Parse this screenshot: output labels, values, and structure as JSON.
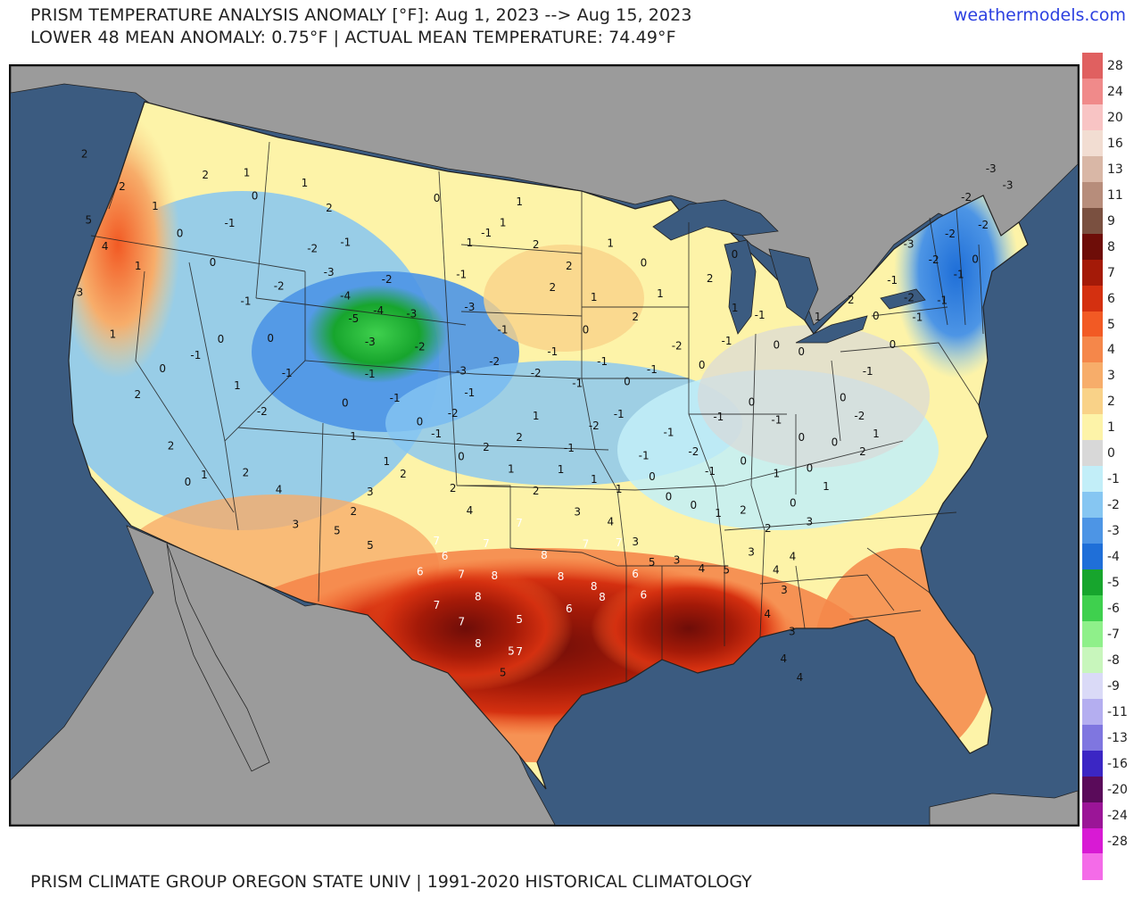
{
  "header": {
    "title_line_1": "PRISM TEMPERATURE ANALYSIS ANOMALY [°F]: Aug 1, 2023 --> Aug 15, 2023",
    "title_line_2": "LOWER 48 MEAN ANOMALY: 0.75°F | ACTUAL MEAN TEMPERATURE: 74.49°F",
    "site": "weathermodels.com"
  },
  "footer": {
    "source": "PRISM CLIMATE GROUP OREGON STATE UNIV | 1991-2020 HISTORICAL CLIMATOLOGY"
  },
  "colors": {
    "ocean": "#3b5b80",
    "land_outside": "#9b9b9b",
    "neutral": "#d9d9d9",
    "link": "#2b3fe0"
  },
  "color_scale": [
    {
      "label": "28",
      "color": "#e06060"
    },
    {
      "label": "24",
      "color": "#f08a8a"
    },
    {
      "label": "20",
      "color": "#f8c4c4"
    },
    {
      "label": "16",
      "color": "#f2ddd2"
    },
    {
      "label": "13",
      "color": "#d9b7a6"
    },
    {
      "label": "11",
      "color": "#b78d7b"
    },
    {
      "label": "9",
      "color": "#7a5040"
    },
    {
      "label": "8",
      "color": "#6e0d08"
    },
    {
      "label": "7",
      "color": "#a41a08"
    },
    {
      "label": "6",
      "color": "#d43010"
    },
    {
      "label": "5",
      "color": "#f25a24"
    },
    {
      "label": "4",
      "color": "#f5874a"
    },
    {
      "label": "3",
      "color": "#f7ad6a"
    },
    {
      "label": "2",
      "color": "#f9d288"
    },
    {
      "label": "1",
      "color": "#fdf3a8"
    },
    {
      "label": "0",
      "color": "#d8d8d8"
    },
    {
      "label": "-1",
      "color": "#c2eef8"
    },
    {
      "label": "-2",
      "color": "#86c6f2"
    },
    {
      "label": "-3",
      "color": "#4d95e5"
    },
    {
      "label": "-4",
      "color": "#1f6fd8"
    },
    {
      "label": "-5",
      "color": "#17a52d"
    },
    {
      "label": "-6",
      "color": "#3fd04e"
    },
    {
      "label": "-7",
      "color": "#8ff08a"
    },
    {
      "label": "-8",
      "color": "#c8f6bc"
    },
    {
      "label": "-9",
      "color": "#dadaf7"
    },
    {
      "label": "-11",
      "color": "#b4aef0"
    },
    {
      "label": "-13",
      "color": "#7f76e0"
    },
    {
      "label": "-16",
      "color": "#3b26c4"
    },
    {
      "label": "-20",
      "color": "#5a0b5a"
    },
    {
      "label": "-24",
      "color": "#9b1597"
    },
    {
      "label": "-28",
      "color": "#d81ad4"
    },
    {
      "label": "",
      "color": "#f46be8"
    }
  ],
  "map_labels": [
    {
      "t": "2",
      "lon": -123.8,
      "lat": 47.5
    },
    {
      "t": "5",
      "lon": -123.5,
      "lat": 44.5
    },
    {
      "t": "4",
      "lon": -122.5,
      "lat": 43.5
    },
    {
      "t": "3",
      "lon": -124.0,
      "lat": 41.0
    },
    {
      "t": "2",
      "lon": -121.5,
      "lat": 46.5
    },
    {
      "t": "1",
      "lon": -119.5,
      "lat": 46.0
    },
    {
      "t": "0",
      "lon": -118.0,
      "lat": 45.0
    },
    {
      "t": "1",
      "lon": -120.5,
      "lat": 43.0
    },
    {
      "t": "0",
      "lon": -116.0,
      "lat": 44.0
    },
    {
      "t": "1",
      "lon": -122.0,
      "lat": 39.5
    },
    {
      "t": "2",
      "lon": -120.5,
      "lat": 37.0
    },
    {
      "t": "0",
      "lon": -119.0,
      "lat": 38.5
    },
    {
      "t": "-1",
      "lon": -117.0,
      "lat": 39.5
    },
    {
      "t": "0",
      "lon": -115.5,
      "lat": 40.5
    },
    {
      "t": "1",
      "lon": -114.5,
      "lat": 38.5
    },
    {
      "t": "2",
      "lon": -118.5,
      "lat": 35.0
    },
    {
      "t": "1",
      "lon": -116.5,
      "lat": 34.0
    },
    {
      "t": "0",
      "lon": -117.5,
      "lat": 33.5
    },
    {
      "t": "2",
      "lon": -114.0,
      "lat": 34.5
    },
    {
      "t": "4",
      "lon": -112.0,
      "lat": 34.0
    },
    {
      "t": "3",
      "lon": -111.0,
      "lat": 32.5
    },
    {
      "t": "-2",
      "lon": -113.0,
      "lat": 37.5
    },
    {
      "t": "-1",
      "lon": -111.5,
      "lat": 39.5
    },
    {
      "t": "0",
      "lon": -112.5,
      "lat": 41.0
    },
    {
      "t": "-1",
      "lon": -114.0,
      "lat": 42.5
    },
    {
      "t": "-2",
      "lon": -112.0,
      "lat": 43.5
    },
    {
      "t": "-1",
      "lon": -115.0,
      "lat": 46.0
    },
    {
      "t": "0",
      "lon": -113.5,
      "lat": 47.5
    },
    {
      "t": "1",
      "lon": -114.0,
      "lat": 48.5
    },
    {
      "t": "2",
      "lon": -116.5,
      "lat": 48.0
    },
    {
      "t": "1",
      "lon": -110.5,
      "lat": 48.5
    },
    {
      "t": "2",
      "lon": -109.0,
      "lat": 47.5
    },
    {
      "t": "-1",
      "lon": -108.0,
      "lat": 46.0
    },
    {
      "t": "-2",
      "lon": -110.0,
      "lat": 45.5
    },
    {
      "t": "-3",
      "lon": -109.0,
      "lat": 44.5
    },
    {
      "t": "-4",
      "lon": -108.0,
      "lat": 43.5
    },
    {
      "t": "-5",
      "lon": -107.5,
      "lat": 42.5
    },
    {
      "t": "-3",
      "lon": -106.5,
      "lat": 41.5
    },
    {
      "t": "-4",
      "lon": -106.0,
      "lat": 43.0
    },
    {
      "t": "-2",
      "lon": -105.5,
      "lat": 44.5
    },
    {
      "t": "-3",
      "lon": -104.0,
      "lat": 43.0
    },
    {
      "t": "-2",
      "lon": -103.5,
      "lat": 41.5
    },
    {
      "t": "-1",
      "lon": -106.5,
      "lat": 40.0
    },
    {
      "t": "-1",
      "lon": -105.0,
      "lat": 39.0
    },
    {
      "t": "0",
      "lon": -108.0,
      "lat": 38.5
    },
    {
      "t": "1",
      "lon": -107.5,
      "lat": 37.0
    },
    {
      "t": "1",
      "lon": -105.5,
      "lat": 36.0
    },
    {
      "t": "2",
      "lon": -104.5,
      "lat": 35.5
    },
    {
      "t": "3",
      "lon": -106.5,
      "lat": 34.5
    },
    {
      "t": "2",
      "lon": -107.5,
      "lat": 33.5
    },
    {
      "t": "5",
      "lon": -108.5,
      "lat": 32.5
    },
    {
      "t": "5",
      "lon": -106.5,
      "lat": 32.0
    },
    {
      "t": "0",
      "lon": -103.5,
      "lat": 38.0
    },
    {
      "t": "-1",
      "lon": -102.5,
      "lat": 37.5
    },
    {
      "t": "-2",
      "lon": -101.5,
      "lat": 38.5
    },
    {
      "t": "-1",
      "lon": -100.5,
      "lat": 39.5
    },
    {
      "t": "-3",
      "lon": -101.0,
      "lat": 40.5
    },
    {
      "t": "-2",
      "lon": -99.0,
      "lat": 41.0
    },
    {
      "t": "-1",
      "lon": -98.5,
      "lat": 42.5
    },
    {
      "t": "-3",
      "lon": -100.5,
      "lat": 43.5
    },
    {
      "t": "-1",
      "lon": -101.0,
      "lat": 45.0
    },
    {
      "t": "1",
      "lon": -100.5,
      "lat": 46.5
    },
    {
      "t": "1",
      "lon": -98.5,
      "lat": 47.5
    },
    {
      "t": "0",
      "lon": -102.5,
      "lat": 48.5
    },
    {
      "t": "1",
      "lon": -97.5,
      "lat": 48.5
    },
    {
      "t": "-1",
      "lon": -99.5,
      "lat": 47.0
    },
    {
      "t": "2",
      "lon": -96.5,
      "lat": 46.5
    },
    {
      "t": "2",
      "lon": -94.5,
      "lat": 45.5
    },
    {
      "t": "1",
      "lon": -93.0,
      "lat": 44.0
    },
    {
      "t": "2",
      "lon": -95.5,
      "lat": 44.5
    },
    {
      "t": "1",
      "lon": -92.0,
      "lat": 46.5
    },
    {
      "t": "0",
      "lon": -90.0,
      "lat": 45.5
    },
    {
      "t": "1",
      "lon": -89.0,
      "lat": 44.0
    },
    {
      "t": "2",
      "lon": -90.5,
      "lat": 43.0
    },
    {
      "t": "0",
      "lon": -93.5,
      "lat": 42.5
    },
    {
      "t": "-1",
      "lon": -95.5,
      "lat": 41.5
    },
    {
      "t": "-2",
      "lon": -96.5,
      "lat": 40.5
    },
    {
      "t": "-1",
      "lon": -94.0,
      "lat": 40.0
    },
    {
      "t": "-1",
      "lon": -92.5,
      "lat": 41.0
    },
    {
      "t": "0",
      "lon": -91.0,
      "lat": 40.0
    },
    {
      "t": "-1",
      "lon": -89.5,
      "lat": 40.5
    },
    {
      "t": "-2",
      "lon": -88.0,
      "lat": 41.5
    },
    {
      "t": "0",
      "lon": -86.5,
      "lat": 40.5
    },
    {
      "t": "-1",
      "lon": -85.0,
      "lat": 41.5
    },
    {
      "t": "1",
      "lon": -84.5,
      "lat": 43.0
    },
    {
      "t": "2",
      "lon": -86.0,
      "lat": 44.5
    },
    {
      "t": "0",
      "lon": -84.5,
      "lat": 45.5
    },
    {
      "t": "-1",
      "lon": -83.0,
      "lat": 42.5
    },
    {
      "t": "0",
      "lon": -82.0,
      "lat": 41.0
    },
    {
      "t": "0",
      "lon": -80.5,
      "lat": 40.5
    },
    {
      "t": "1",
      "lon": -79.5,
      "lat": 42.0
    },
    {
      "t": "2",
      "lon": -77.5,
      "lat": 42.5
    },
    {
      "t": "0",
      "lon": -76.0,
      "lat": 41.5
    },
    {
      "t": "-1",
      "lon": -75.0,
      "lat": 43.0
    },
    {
      "t": "-2",
      "lon": -74.0,
      "lat": 42.0
    },
    {
      "t": "-1",
      "lon": -73.5,
      "lat": 41.0
    },
    {
      "t": "-2",
      "lon": -72.5,
      "lat": 43.5
    },
    {
      "t": "-3",
      "lon": -74.0,
      "lat": 44.5
    },
    {
      "t": "-2",
      "lon": -71.5,
      "lat": 44.5
    },
    {
      "t": "-2",
      "lon": -70.5,
      "lat": 46.0
    },
    {
      "t": "-3",
      "lon": -69.0,
      "lat": 47.0
    },
    {
      "t": "-3",
      "lon": -68.0,
      "lat": 46.0
    },
    {
      "t": "-2",
      "lon": -69.5,
      "lat": 44.5
    },
    {
      "t": "-1",
      "lon": -71.0,
      "lat": 42.5
    },
    {
      "t": "0",
      "lon": -70.0,
      "lat": 43.0
    },
    {
      "t": "-1",
      "lon": -72.0,
      "lat": 41.5
    },
    {
      "t": "0",
      "lon": -75.0,
      "lat": 40.0
    },
    {
      "t": "-1",
      "lon": -76.5,
      "lat": 39.0
    },
    {
      "t": "0",
      "lon": -78.0,
      "lat": 38.0
    },
    {
      "t": "-2",
      "lon": -77.0,
      "lat": 37.0
    },
    {
      "t": "1",
      "lon": -76.0,
      "lat": 36.0
    },
    {
      "t": "2",
      "lon": -76.8,
      "lat": 35.3
    },
    {
      "t": "0",
      "lon": -78.5,
      "lat": 36.0
    },
    {
      "t": "0",
      "lon": -80.5,
      "lat": 36.5
    },
    {
      "t": "-1",
      "lon": -82.0,
      "lat": 37.5
    },
    {
      "t": "0",
      "lon": -83.5,
      "lat": 38.5
    },
    {
      "t": "-1",
      "lon": -85.5,
      "lat": 38.0
    },
    {
      "t": "-2",
      "lon": -87.0,
      "lat": 36.5
    },
    {
      "t": "-1",
      "lon": -88.5,
      "lat": 37.5
    },
    {
      "t": "0",
      "lon": -89.5,
      "lat": 35.5
    },
    {
      "t": "-1",
      "lon": -86.0,
      "lat": 35.5
    },
    {
      "t": "0",
      "lon": -84.0,
      "lat": 35.8
    },
    {
      "t": "1",
      "lon": -82.0,
      "lat": 35.0
    },
    {
      "t": "0",
      "lon": -80.0,
      "lat": 35.0
    },
    {
      "t": "1",
      "lon": -79.0,
      "lat": 34.0
    },
    {
      "t": "0",
      "lon": -81.0,
      "lat": 33.5
    },
    {
      "t": "2",
      "lon": -82.5,
      "lat": 32.5
    },
    {
      "t": "2",
      "lon": -84.0,
      "lat": 33.5
    },
    {
      "t": "1",
      "lon": -85.5,
      "lat": 33.5
    },
    {
      "t": "0",
      "lon": -87.0,
      "lat": 34.0
    },
    {
      "t": "0",
      "lon": -88.5,
      "lat": 34.5
    },
    {
      "t": "-1",
      "lon": -90.0,
      "lat": 36.5
    },
    {
      "t": "-1",
      "lon": -91.5,
      "lat": 38.5
    },
    {
      "t": "-2",
      "lon": -93.0,
      "lat": 38.0
    },
    {
      "t": "-1",
      "lon": -94.5,
      "lat": 37.0
    },
    {
      "t": "1",
      "lon": -95.0,
      "lat": 36.0
    },
    {
      "t": "1",
      "lon": -93.0,
      "lat": 35.5
    },
    {
      "t": "3",
      "lon": -94.0,
      "lat": 34.0
    },
    {
      "t": "4",
      "lon": -92.0,
      "lat": 33.5
    },
    {
      "t": "1",
      "lon": -91.5,
      "lat": 35.0
    },
    {
      "t": "3",
      "lon": -90.5,
      "lat": 32.5
    },
    {
      "t": "5",
      "lon": -89.5,
      "lat": 31.5
    },
    {
      "t": "3",
      "lon": -88.0,
      "lat": 31.5
    },
    {
      "t": "4",
      "lon": -86.5,
      "lat": 31.0
    },
    {
      "t": "5",
      "lon": -85.0,
      "lat": 30.8
    },
    {
      "t": "3",
      "lon": -83.5,
      "lat": 31.5
    },
    {
      "t": "4",
      "lon": -82.0,
      "lat": 30.5
    },
    {
      "t": "3",
      "lon": -81.5,
      "lat": 29.5
    },
    {
      "t": "4",
      "lon": -82.5,
      "lat": 28.5
    },
    {
      "t": "3",
      "lon": -81.0,
      "lat": 27.5
    },
    {
      "t": "4",
      "lon": -81.5,
      "lat": 26.3
    },
    {
      "t": "4",
      "lon": -80.5,
      "lat": 25.3
    },
    {
      "t": "3",
      "lon": -80.0,
      "lat": 32.5
    },
    {
      "t": "4",
      "lon": -81.0,
      "lat": 31.0
    },
    {
      "t": "1",
      "lon": -96.5,
      "lat": 38.5
    },
    {
      "t": "2",
      "lon": -97.5,
      "lat": 37.5
    },
    {
      "t": "2",
      "lon": -99.5,
      "lat": 37.0
    },
    {
      "t": "0",
      "lon": -101.0,
      "lat": 36.5
    },
    {
      "t": "1",
      "lon": -98.0,
      "lat": 36.0
    },
    {
      "t": "2",
      "lon": -96.5,
      "lat": 35.0
    },
    {
      "t": "2",
      "lon": -101.5,
      "lat": 35.0
    },
    {
      "t": "4",
      "lon": -100.5,
      "lat": 34.0
    },
    {
      "t": "7",
      "lon": -102.5,
      "lat": 32.5,
      "w": 1
    },
    {
      "t": "7",
      "lon": -99.5,
      "lat": 32.5,
      "w": 1
    },
    {
      "t": "7",
      "lon": -97.5,
      "lat": 33.5,
      "w": 1
    },
    {
      "t": "8",
      "lon": -96.0,
      "lat": 32.0,
      "w": 1
    },
    {
      "t": "8",
      "lon": -99.0,
      "lat": 31.0,
      "w": 1
    },
    {
      "t": "7",
      "lon": -101.0,
      "lat": 31.0,
      "w": 1
    },
    {
      "t": "6",
      "lon": -102.0,
      "lat": 31.8,
      "w": 1
    },
    {
      "t": "6",
      "lon": -103.5,
      "lat": 31.0,
      "w": 1
    },
    {
      "t": "8",
      "lon": -100.0,
      "lat": 30.0,
      "w": 1
    },
    {
      "t": "7",
      "lon": -102.5,
      "lat": 29.5,
      "w": 1
    },
    {
      "t": "7",
      "lon": -101.0,
      "lat": 28.8,
      "w": 1
    },
    {
      "t": "8",
      "lon": -100.0,
      "lat": 27.8,
      "w": 1
    },
    {
      "t": "5",
      "lon": -97.5,
      "lat": 29.0,
      "w": 1
    },
    {
      "t": "5",
      "lon": -98.0,
      "lat": 27.5,
      "w": 1
    },
    {
      "t": "8",
      "lon": -95.0,
      "lat": 31.0,
      "w": 1
    },
    {
      "t": "8",
      "lon": -93.0,
      "lat": 30.5,
      "w": 1
    },
    {
      "t": "7",
      "lon": -93.5,
      "lat": 32.5,
      "w": 1
    },
    {
      "t": "7",
      "lon": -91.5,
      "lat": 32.5,
      "w": 1
    },
    {
      "t": "6",
      "lon": -94.5,
      "lat": 29.5,
      "w": 1
    },
    {
      "t": "6",
      "lon": -90.5,
      "lat": 31.0,
      "w": 1
    },
    {
      "t": "8",
      "lon": -92.5,
      "lat": 30.0,
      "w": 1
    },
    {
      "t": "6",
      "lon": -90.0,
      "lat": 30.0,
      "w": 1
    },
    {
      "t": "7",
      "lon": -97.5,
      "lat": 27.5,
      "w": 1
    },
    {
      "t": "5",
      "lon": -98.5,
      "lat": 26.5
    }
  ]
}
